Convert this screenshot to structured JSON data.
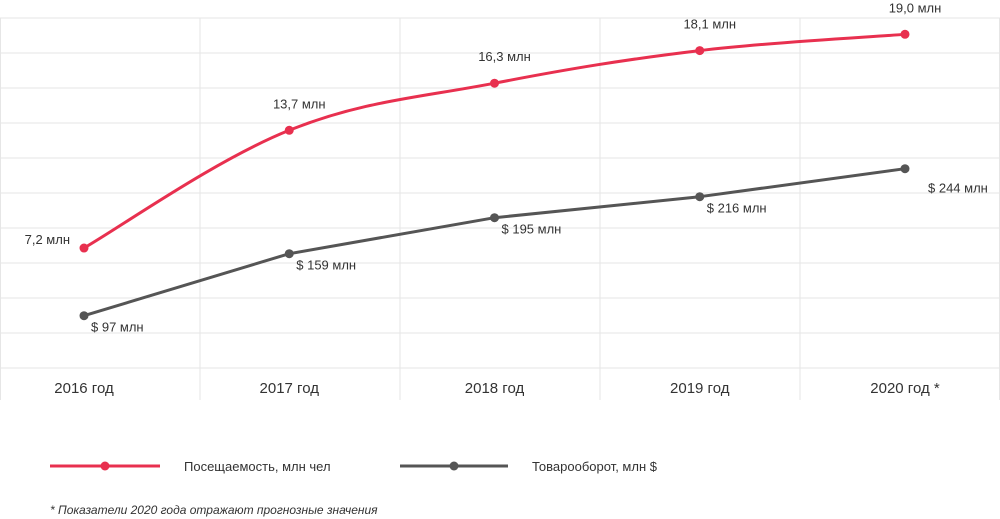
{
  "chart_data": {
    "type": "line",
    "categories": [
      "2016 год",
      "2017 год",
      "2018 год",
      "2019 год",
      "2020 год *"
    ],
    "ylim": [
      0,
      20.5
    ],
    "grid": true,
    "legend_placement": "bottom",
    "series": [
      {
        "name": "Посещаемость, млн чел",
        "color": "#e8304f",
        "values": [
          7.2,
          13.7,
          16.3,
          18.1,
          19.0
        ],
        "labels": [
          "7,2 млн",
          "13,7 млн",
          "16,3 млн",
          "18,1 млн",
          "19,0 млн"
        ]
      },
      {
        "name": "Товарооборот, млн $",
        "color": "#555555",
        "values": [
          97,
          159,
          195,
          216,
          244
        ],
        "labels": [
          "$ 97 млн",
          "$ 159 млн",
          "$ 195 млн",
          "$ 216 млн",
          "$ 244 млн"
        ]
      }
    ]
  },
  "footnote": "* Показатели 2020 года отражают прогнозные значения"
}
